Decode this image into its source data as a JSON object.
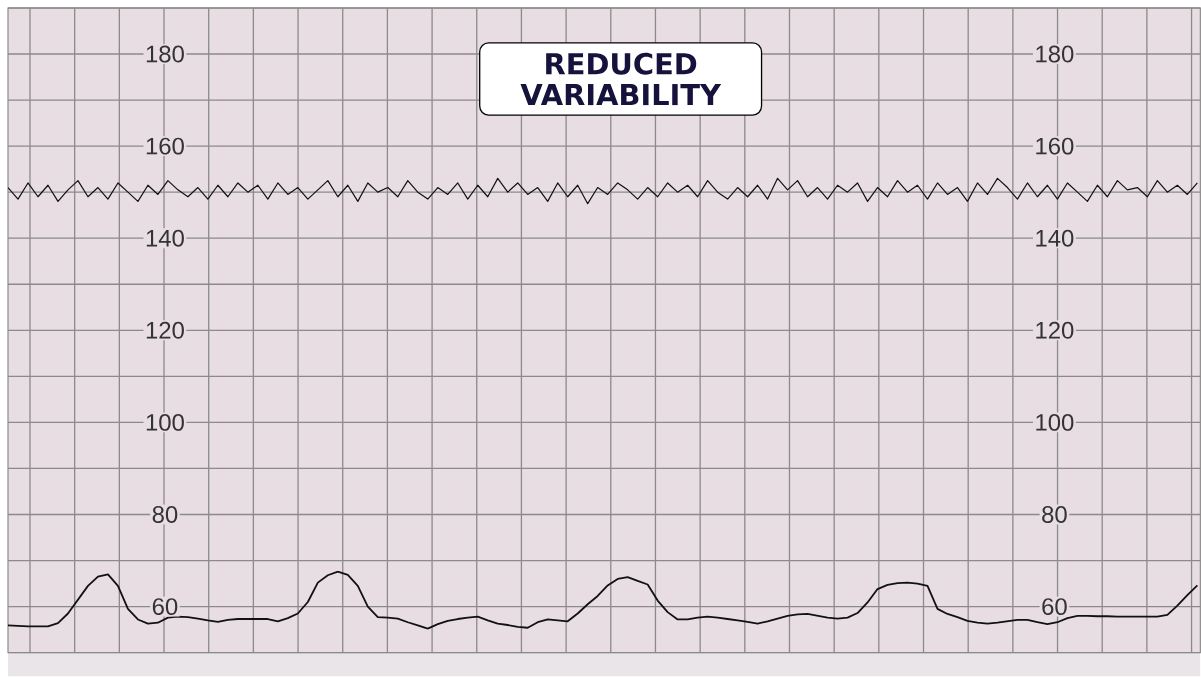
{
  "chart_data": {
    "type": "line",
    "annotations": [
      "REDUCED VARIABILITY"
    ],
    "categories": [
      null,
      null,
      null,
      null,
      null,
      null,
      null,
      null,
      null,
      null,
      null,
      null,
      null,
      null,
      null,
      null,
      null,
      null,
      null,
      null,
      null,
      null,
      null,
      null,
      null,
      null,
      null,
      null,
      null,
      null,
      null,
      null,
      null,
      null,
      null,
      null,
      null,
      null,
      null,
      null,
      null,
      null,
      null,
      null,
      null,
      null,
      null,
      null,
      null,
      null,
      null,
      null,
      null,
      null,
      null,
      null,
      null,
      null,
      null,
      null,
      null,
      null,
      null,
      null,
      null,
      null,
      null,
      null,
      null,
      null,
      null,
      null,
      null,
      null,
      null,
      null,
      null,
      null,
      null,
      null,
      null,
      null,
      null,
      null,
      null,
      null,
      null,
      null,
      null,
      null,
      null,
      null,
      null,
      null,
      null,
      null,
      null,
      null,
      null,
      null,
      null,
      null,
      null,
      null,
      null,
      null,
      null,
      null,
      null,
      null,
      null,
      null,
      null,
      null,
      null,
      null,
      null,
      null,
      null,
      null
    ],
    "series": [
      {
        "color": "#111111",
        "values": [
          151,
          148.5,
          152,
          149,
          151.5,
          148,
          150.5,
          152.5,
          149,
          151,
          148.5,
          152,
          150,
          148,
          151.5,
          149.5,
          152.5,
          150.5,
          149,
          151,
          148.5,
          151.5,
          149,
          152,
          150,
          151.5,
          148.5,
          152,
          149.5,
          151,
          148.5,
          150.5,
          152.5,
          149,
          151.5,
          148,
          152,
          150,
          151,
          149,
          152.5,
          150,
          148.5,
          151,
          149.5,
          152,
          148.5,
          151.5,
          149,
          153,
          150,
          152,
          149.5,
          151,
          148,
          152,
          149,
          151.5,
          147.5,
          151,
          149.5,
          152,
          150.5,
          148.5,
          151,
          149,
          152,
          150,
          151.5,
          149,
          152.5,
          150,
          148.5,
          151,
          149,
          151.5,
          148.5,
          153,
          150.5,
          152.5,
          149,
          151,
          148.5,
          151.5,
          150,
          152,
          148,
          151,
          149,
          152.5,
          150,
          151.5,
          148.5,
          152,
          149.5,
          151,
          148,
          152,
          149.5,
          153,
          151,
          148.5,
          152,
          149,
          151.5,
          148.5,
          152,
          150,
          148,
          151.5,
          149,
          152.5,
          150.5,
          151,
          149,
          152.5,
          150,
          151.5,
          149.5,
          152
        ]
      },
      {
        "color": "#111111",
        "values": [
          55.9,
          55.8,
          55.7,
          55.7,
          55.7,
          56.4,
          58.5,
          61.5,
          64.5,
          66.5,
          67,
          64.5,
          59.5,
          57.2,
          56.3,
          56.5,
          57.6,
          57.8,
          57.7,
          57.4,
          57,
          56.7,
          57.1,
          57.3,
          57.3,
          57.3,
          57.3,
          56.8,
          57.5,
          58.5,
          61,
          65.2,
          66.8,
          67.6,
          66.9,
          64.5,
          60,
          57.7,
          57.6,
          57.4,
          56.6,
          55.9,
          55.2,
          56.2,
          56.9,
          57.3,
          57.6,
          57.8,
          57,
          56.3,
          56,
          55.6,
          55.4,
          56.6,
          57.2,
          57,
          56.8,
          58.5,
          60.5,
          62.3,
          64.6,
          66,
          66.4,
          65.6,
          64.8,
          61.3,
          58.8,
          57.2,
          57.2,
          57.6,
          57.8,
          57.6,
          57.3,
          57,
          56.7,
          56.3,
          56.8,
          57.4,
          58,
          58.3,
          58.4,
          58,
          57.6,
          57.4,
          57.6,
          58.6,
          60.9,
          63.8,
          64.7,
          65.1,
          65.2,
          65,
          64.5,
          59.5,
          58.4,
          57.7,
          56.9,
          56.5,
          56.3,
          56.5,
          56.8,
          57.1,
          57.1,
          56.6,
          56.2,
          56.6,
          57.5,
          58,
          58,
          57.9,
          57.9,
          57.8,
          57.8,
          57.8,
          57.8,
          57.8,
          58.2,
          60.2,
          62.5,
          64.6
        ]
      }
    ],
    "ylim": [
      50,
      190
    ],
    "yticks": [
      {
        "value": 50,
        "label": null
      },
      60,
      {
        "value": 70,
        "label": null
      },
      80,
      {
        "value": 90,
        "label": null
      },
      100,
      {
        "value": 110,
        "label": null
      },
      120,
      {
        "value": 130,
        "label": null
      },
      140,
      {
        "value": 150,
        "label": null
      },
      160,
      {
        "value": 170,
        "label": null
      },
      180,
      {
        "value": 190,
        "label": null
      }
    ],
    "y2lim": [
      50,
      190
    ],
    "y2ticks": [
      60,
      80,
      100,
      120,
      140,
      160,
      180
    ],
    "grid": true,
    "marker": "none",
    "line_style": "solid"
  }
}
